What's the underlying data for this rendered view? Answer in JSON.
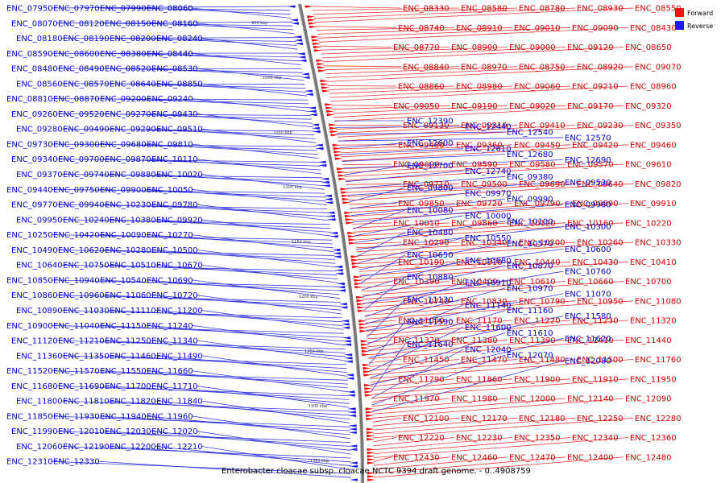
{
  "caption": "Enterobacter cloacae subsp. cloacae NCTC 9394 draft genome. - 0..4908759",
  "legend": [
    {
      "label": "Forward",
      "color": "#ee1111"
    },
    {
      "label": "Reverse",
      "color": "#1a1aee"
    }
  ],
  "colors": {
    "forward_text": "#cc0000",
    "reverse_text": "#0000cc",
    "forward_line": "#e83a3a",
    "reverse_line": "#3b3bdd",
    "backbone": "#777777"
  },
  "ticks": [
    "950 kbp",
    "1000 kbp",
    "1050 kbp",
    "1100 kbp",
    "1150 kbp",
    "1200 kbp",
    "1250 kbp",
    "1300 kbp",
    "1350 kbp"
  ],
  "genes": {
    "reverse": [
      "ENC_07950",
      "ENC_07970",
      "ENC_07990",
      "ENC_08060",
      "ENC_08070",
      "ENC_08120",
      "ENC_08150",
      "ENC_08160",
      "ENC_08180",
      "ENC_08190",
      "ENC_08200",
      "ENC_08240",
      "ENC_08590",
      "ENC_08600",
      "ENC_08380",
      "ENC_08440",
      "ENC_08480",
      "ENC_08490",
      "ENC_08520",
      "ENC_08530",
      "ENC_08560",
      "ENC_08570",
      "ENC_08640",
      "ENC_08850",
      "ENC_08810",
      "ENC_08870",
      "ENC_09200",
      "ENC_09240",
      "ENC_09260",
      "ENC_09520",
      "ENC_09270",
      "ENC_09430",
      "ENC_09280",
      "ENC_09490",
      "ENC_09290",
      "ENC_09510",
      "ENC_09730",
      "ENC_09300",
      "ENC_09680",
      "ENC_09810",
      "ENC_09340",
      "ENC_09700",
      "ENC_09870",
      "ENC_10110",
      "ENC_09370",
      "ENC_09740",
      "ENC_09880",
      "ENC_10020",
      "ENC_09440",
      "ENC_09750",
      "ENC_09900",
      "ENC_10050",
      "ENC_09770",
      "ENC_09940",
      "ENC_10230",
      "ENC_09780",
      "ENC_09950",
      "ENC_10240",
      "ENC_10380",
      "ENC_09920",
      "ENC_10250",
      "ENC_10420",
      "ENC_10090",
      "ENC_10270",
      "ENC_10490",
      "ENC_10620",
      "ENC_10280",
      "ENC_10500",
      "ENC_10640",
      "ENC_10750",
      "ENC_10510",
      "ENC_10670",
      "ENC_10850",
      "ENC_10940",
      "ENC_10540",
      "ENC_10690",
      "ENC_10860",
      "ENC_10960",
      "ENC_11060",
      "ENC_10720",
      "ENC_10890",
      "ENC_11030",
      "ENC_11110",
      "ENC_11200",
      "ENC_10900",
      "ENC_11040",
      "ENC_11150",
      "ENC_11240",
      "ENC_11120",
      "ENC_11210",
      "ENC_11250",
      "ENC_11340",
      "ENC_11360",
      "ENC_11350",
      "ENC_11460",
      "ENC_11490",
      "ENC_11520",
      "ENC_11570",
      "ENC_11550",
      "ENC_11660",
      "ENC_11680",
      "ENC_11690",
      "ENC_11700",
      "ENC_11710",
      "ENC_11800",
      "ENC_11810",
      "ENC_11820",
      "ENC_11840",
      "ENC_11850",
      "ENC_11930",
      "ENC_11940",
      "ENC_11960",
      "ENC_11990",
      "ENC_12010",
      "ENC_12030",
      "ENC_12020",
      "ENC_12060",
      "ENC_12190",
      "ENC_12200",
      "ENC_12210",
      "ENC_12310",
      "ENC_12330",
      "ENC_12390",
      "ENC_12440",
      "ENC_12540",
      "ENC_12570",
      "ENC_12600",
      "ENC_12610",
      "ENC_12680",
      "ENC_12690",
      "ENC_12700",
      "ENC_12740",
      "ENC_09380",
      "ENC_09530",
      "ENC_09800",
      "ENC_09970",
      "ENC_09990",
      "ENC_09960",
      "ENC_10080",
      "ENC_10000",
      "ENC_10100",
      "ENC_10300",
      "ENC_10480",
      "ENC_10550",
      "ENC_10570",
      "ENC_10600",
      "ENC_10650",
      "ENC_10680",
      "ENC_10870",
      "ENC_10760",
      "ENC_10880",
      "ENC_10910",
      "ENC_10970",
      "ENC_11070",
      "ENC_11130",
      "ENC_11140",
      "ENC_11160",
      "ENC_11580",
      "ENC_11590",
      "ENC_11600",
      "ENC_11610",
      "ENC_11620",
      "ENC_11640",
      "ENC_12040",
      "ENC_12070",
      "ENC_12080"
    ],
    "forward": [
      "ENC_08330",
      "ENC_08580",
      "ENC_08780",
      "ENC_08930",
      "ENC_08550",
      "ENC_08740",
      "ENC_08910",
      "ENC_09010",
      "ENC_09090",
      "ENC_08430",
      "ENC_08770",
      "ENC_08900",
      "ENC_09000",
      "ENC_09120",
      "ENC_08650",
      "ENC_08840",
      "ENC_08970",
      "ENC_08750",
      "ENC_08920",
      "ENC_09070",
      "ENC_08860",
      "ENC_08980",
      "ENC_09060",
      "ENC_09210",
      "ENC_08960",
      "ENC_09050",
      "ENC_09190",
      "ENC_09020",
      "ENC_09170",
      "ENC_09320",
      "ENC_09130",
      "ENC_09310",
      "ENC_09410",
      "ENC_09230",
      "ENC_09350",
      "ENC_09480",
      "ENC_09360",
      "ENC_09450",
      "ENC_09420",
      "ENC_09460",
      "ENC_09600",
      "ENC_09590",
      "ENC_09580",
      "ENC_09570",
      "ENC_09610",
      "ENC_09710",
      "ENC_09500",
      "ENC_09690",
      "ENC_09640",
      "ENC_09820",
      "ENC_09850",
      "ENC_09720",
      "ENC_09790",
      "ENC_09890",
      "ENC_09910",
      "ENC_10010",
      "ENC_09860",
      "ENC_10120",
      "ENC_10160",
      "ENC_10220",
      "ENC_10290",
      "ENC_10340",
      "ENC_10200",
      "ENC_10260",
      "ENC_10330",
      "ENC_10190",
      "ENC_10310",
      "ENC_10440",
      "ENC_10430",
      "ENC_10410",
      "ENC_10390",
      "ENC_10400",
      "ENC_10610",
      "ENC_10660",
      "ENC_10700",
      "ENC_10740",
      "ENC_10830",
      "ENC_10790",
      "ENC_10950",
      "ENC_11080",
      "ENC_11050",
      "ENC_11170",
      "ENC_11220",
      "ENC_11230",
      "ENC_11320",
      "ENC_11370",
      "ENC_11380",
      "ENC_11390",
      "ENC_11410",
      "ENC_11440",
      "ENC_11450",
      "ENC_11470",
      "ENC_11480",
      "ENC_11500",
      "ENC_11760",
      "ENC_11790",
      "ENC_11860",
      "ENC_11900",
      "ENC_11910",
      "ENC_11950",
      "ENC_11970",
      "ENC_11980",
      "ENC_12000",
      "ENC_12140",
      "ENC_12090",
      "ENC_12100",
      "ENC_12170",
      "ENC_12180",
      "ENC_12250",
      "ENC_12280",
      "ENC_12220",
      "ENC_12230",
      "ENC_12350",
      "ENC_12340",
      "ENC_12360",
      "ENC_12430",
      "ENC_12460",
      "ENC_12470",
      "ENC_12400",
      "ENC_12480"
    ]
  }
}
